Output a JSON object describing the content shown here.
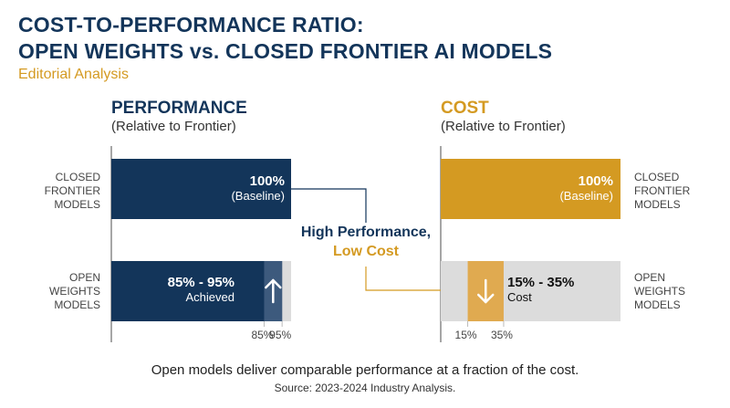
{
  "title_line1": "COST-TO-PERFORMANCE RATIO:",
  "title_line2": "OPEN WEIGHTS vs. CLOSED FRONTIER AI MODELS",
  "subtitle": "Editorial Analysis",
  "colors": {
    "navy": "#13355a",
    "gold": "#d49a22",
    "light_grey": "#dcdcdc",
    "range_navy": "#3d5a7d",
    "range_gold": "#e0aa50"
  },
  "chart_data": [
    {
      "type": "bar",
      "orientation": "horizontal",
      "title": "PERFORMANCE",
      "subtitle": "(Relative to Frontier)",
      "xlim": [
        0,
        100
      ],
      "categories": [
        "CLOSED FRONTIER MODELS",
        "OPEN WEIGHTS MODELS"
      ],
      "category_lines": [
        [
          "CLOSED",
          "FRONTIER",
          "MODELS"
        ],
        [
          "OPEN",
          "WEIGHTS",
          "MODELS"
        ]
      ],
      "bars": [
        {
          "category": "CLOSED FRONTIER MODELS",
          "value": 100,
          "label_main": "100%",
          "label_sub": "(Baseline)"
        },
        {
          "category": "OPEN WEIGHTS MODELS",
          "range": [
            85,
            95
          ],
          "label_main": "85% - 95%",
          "label_sub": "Achieved",
          "arrow": "up"
        }
      ],
      "tick_labels": [
        "85%",
        "95%"
      ],
      "tick_values": [
        85,
        95
      ],
      "color": "#13355a"
    },
    {
      "type": "bar",
      "orientation": "horizontal",
      "title": "COST",
      "subtitle": "(Relative to Frontier)",
      "xlim": [
        0,
        100
      ],
      "categories": [
        "CLOSED FRONTIER MODELS",
        "OPEN WEIGHTS MODELS"
      ],
      "category_lines": [
        [
          "CLOSED",
          "FRONTIER",
          "MODELS"
        ],
        [
          "OPEN",
          "WEIGHTS",
          "MODELS"
        ]
      ],
      "bars": [
        {
          "category": "CLOSED FRONTIER MODELS",
          "value": 100,
          "label_main": "100%",
          "label_sub": "(Baseline)"
        },
        {
          "category": "OPEN WEIGHTS MODELS",
          "range": [
            15,
            35
          ],
          "label_main": "15% - 35%",
          "label_sub": "Cost",
          "arrow": "down"
        }
      ],
      "tick_labels": [
        "15%",
        "35%"
      ],
      "tick_values": [
        15,
        35
      ],
      "color": "#d49a22"
    }
  ],
  "annotation": {
    "line1": "High Performance,",
    "line2": "Low Cost"
  },
  "caption": "Open models deliver comparable performance at a fraction of the cost.",
  "source": "Source: 2023-2024 Industry Analysis."
}
